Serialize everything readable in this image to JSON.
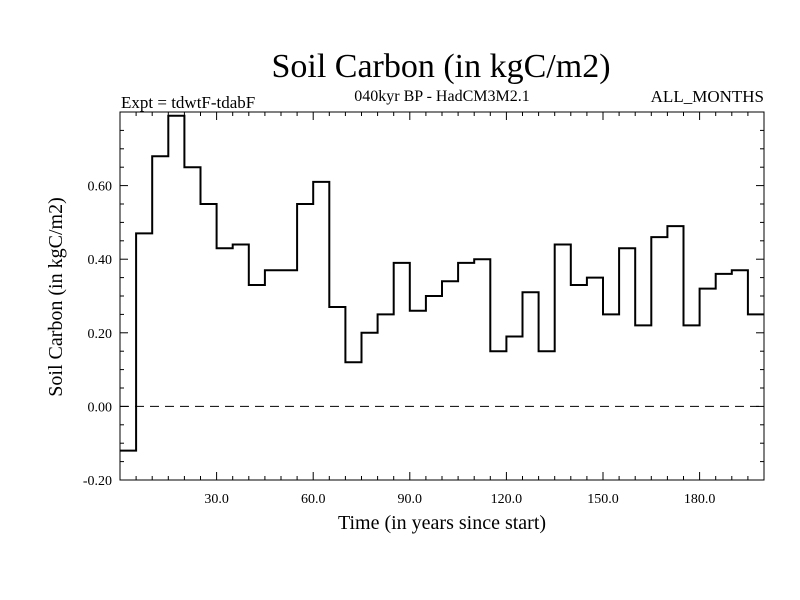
{
  "chart_data": {
    "type": "line",
    "style": "step",
    "title": "Soil Carbon (in kgC/m2)",
    "subtitle": "040kyr BP - HadCM3M2.1",
    "experiment_label": "Expt = tdwtF-tdabF",
    "months_label": "ALL_MONTHS",
    "xlabel": "Time (in years since start)",
    "ylabel": "Soil Carbon (in kgC/m2)",
    "xlim": [
      0,
      200
    ],
    "ylim": [
      -0.2,
      0.8
    ],
    "x_ticks": [
      30,
      60,
      90,
      120,
      150,
      180
    ],
    "x_tick_labels": [
      "30.0",
      "60.0",
      "90.0",
      "120.0",
      "150.0",
      "180.0"
    ],
    "y_ticks": [
      -0.2,
      0.0,
      0.2,
      0.4,
      0.6
    ],
    "y_tick_labels": [
      "-0.20",
      "0.00",
      "0.20",
      "0.40",
      "0.60"
    ],
    "zero_line": 0.0,
    "step_width": 5,
    "series": [
      {
        "name": "tdwtF-tdabF",
        "x": [
          0,
          5,
          10,
          15,
          20,
          25,
          30,
          35,
          40,
          45,
          50,
          55,
          60,
          65,
          70,
          75,
          80,
          85,
          90,
          95,
          100,
          105,
          110,
          115,
          120,
          125,
          130,
          135,
          140,
          145,
          150,
          155,
          160,
          165,
          170,
          175,
          180,
          185,
          190,
          195
        ],
        "values": [
          -0.12,
          0.47,
          0.68,
          0.79,
          0.65,
          0.55,
          0.43,
          0.44,
          0.33,
          0.37,
          0.37,
          0.55,
          0.61,
          0.27,
          0.12,
          0.2,
          0.25,
          0.39,
          0.26,
          0.3,
          0.34,
          0.39,
          0.4,
          0.15,
          0.19,
          0.31,
          0.15,
          0.44,
          0.33,
          0.35,
          0.25,
          0.43,
          0.22,
          0.46,
          0.49,
          0.22,
          0.32,
          0.36,
          0.37,
          0.25
        ]
      }
    ]
  }
}
